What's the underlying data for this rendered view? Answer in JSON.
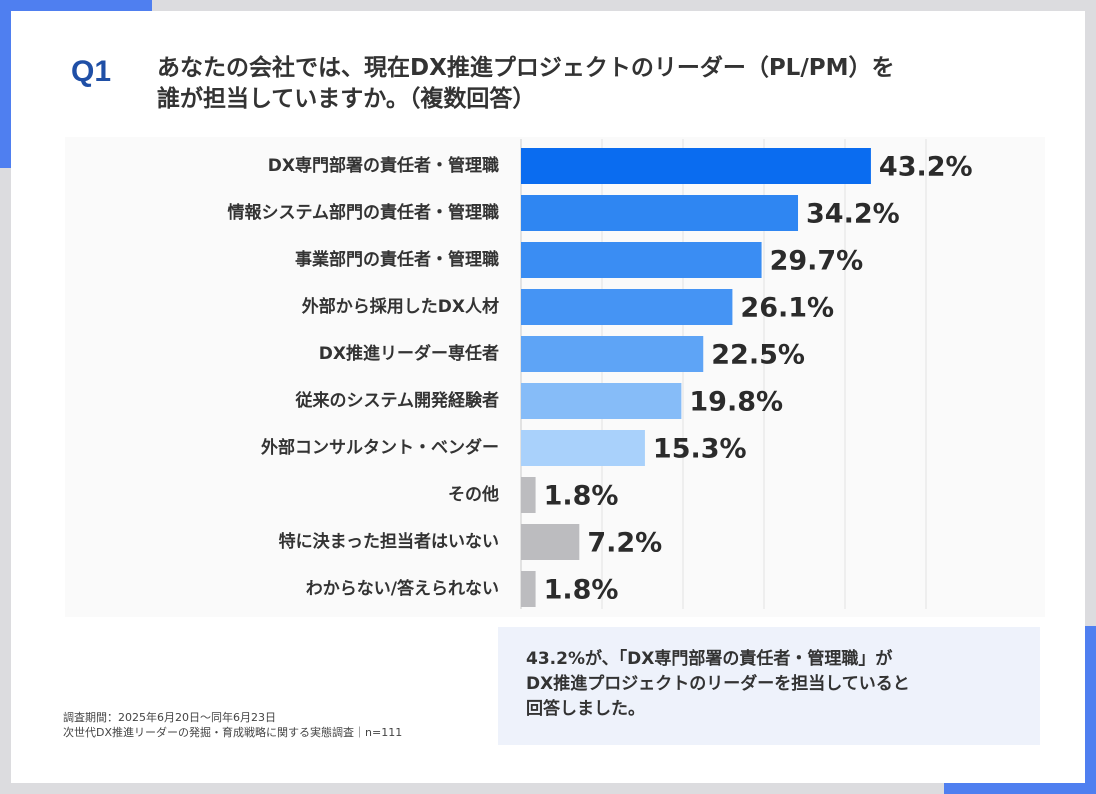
{
  "header": {
    "q_number": "Q1",
    "question_line1": "あなたの会社では、現在DX推進プロジェクトのリーダー（PL/PM）を",
    "question_line2": "誰が担当していますか。（複数回答）"
  },
  "chart_data": {
    "type": "bar",
    "orientation": "horizontal",
    "categories": [
      "DX専門部署の責任者・管理職",
      "情報システム部門の責任者・管理職",
      "事業部門の責任者・管理職",
      "外部から採用したDX人材",
      "DX推進リーダー専任者",
      "従来のシステム開発経験者",
      "外部コンサルタント・ベンダー",
      "その他",
      "特に決まった担当者はいない",
      "わからない/答えられない"
    ],
    "values": [
      43.2,
      34.2,
      29.7,
      26.1,
      22.5,
      19.8,
      15.3,
      1.8,
      7.2,
      1.8
    ],
    "value_labels": [
      "43.2%",
      "34.2%",
      "29.7%",
      "26.1%",
      "22.5%",
      "19.8%",
      "15.3%",
      "1.8%",
      "7.2%",
      "1.8%"
    ],
    "xlim": [
      0,
      50
    ],
    "grid": true,
    "bar_colors": [
      "#0a6cf0",
      "#2f86f2",
      "#3a8df3",
      "#4594f4",
      "#5ea4f6",
      "#86bcf8",
      "#a9d1fb",
      "#bcbcbf",
      "#bcbcbf",
      "#bcbcbf"
    ]
  },
  "summary": {
    "line1": "43.2%が、「DX専門部署の責任者・管理職」が",
    "line2": "DX推進プロジェクトのリーダーを担当していると",
    "line3": "回答しました。"
  },
  "footnote": {
    "line1": "調査期間：2025年6月20日～同年6月23日",
    "line2": "次世代DX推進リーダーの発掘・育成戦略に関する実態調査｜n=111"
  }
}
